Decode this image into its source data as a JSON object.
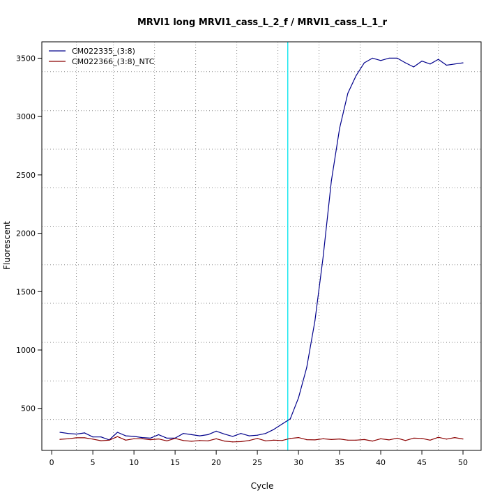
{
  "chart_data": {
    "type": "line",
    "title": "MRVI1 long MRVI1_cass_L_2_f / MRVI1_cass_L_1_r",
    "xlabel": "Cycle",
    "ylabel": "Fluorescent",
    "xlim": [
      -1.2,
      52.2
    ],
    "ylim": [
      140,
      3640
    ],
    "x_ticks": [
      0,
      5,
      10,
      15,
      20,
      25,
      30,
      35,
      40,
      45,
      50
    ],
    "y_ticks": [
      500,
      1000,
      1500,
      2000,
      2500,
      3000,
      3500
    ],
    "x_grid": [
      3,
      7.5,
      12.5,
      17.5,
      22.5,
      27.5,
      32.5,
      37.5,
      42,
      47
    ],
    "y_grid": [
      405,
      735,
      1065,
      1400,
      1730,
      2060,
      2390,
      2720,
      3050,
      3385
    ],
    "grid": true,
    "legend_position": "top-left",
    "threshold_x": 28.7,
    "threshold_color": "#00e5ee",
    "series": [
      {
        "name": "CM022335_(3:8)",
        "color": "#00008b",
        "x": [
          1,
          2,
          3,
          4,
          5,
          6,
          7,
          8,
          9,
          10,
          11,
          12,
          13,
          14,
          15,
          16,
          17,
          18,
          19,
          20,
          21,
          22,
          23,
          24,
          25,
          26,
          27,
          28,
          29,
          30,
          31,
          32,
          33,
          34,
          35,
          36,
          37,
          38,
          39,
          40,
          41,
          42,
          43,
          44,
          45,
          46,
          47,
          48,
          49,
          50
        ],
        "y": [
          295,
          285,
          280,
          290,
          255,
          255,
          230,
          295,
          265,
          260,
          250,
          245,
          275,
          245,
          245,
          285,
          275,
          265,
          275,
          305,
          280,
          260,
          285,
          265,
          270,
          285,
          320,
          365,
          410,
          590,
          850,
          1250,
          1800,
          2450,
          2900,
          3200,
          3350,
          3460,
          3500,
          3480,
          3500,
          3500,
          3460,
          3425,
          3475,
          3450,
          3490,
          3440,
          3450,
          3460
        ]
      },
      {
        "name": "CM022366_(3:8)_NTC",
        "color": "#8b0000",
        "x": [
          1,
          2,
          3,
          4,
          5,
          6,
          7,
          8,
          9,
          10,
          11,
          12,
          13,
          14,
          15,
          16,
          17,
          18,
          19,
          20,
          21,
          22,
          23,
          24,
          25,
          26,
          27,
          28,
          29,
          30,
          31,
          32,
          33,
          34,
          35,
          36,
          37,
          38,
          39,
          40,
          41,
          42,
          43,
          44,
          45,
          46,
          47,
          48,
          49,
          50
        ],
        "y": [
          235,
          240,
          248,
          248,
          237,
          223,
          228,
          258,
          228,
          240,
          240,
          232,
          238,
          222,
          243,
          225,
          218,
          225,
          222,
          240,
          220,
          213,
          215,
          225,
          243,
          222,
          228,
          225,
          243,
          250,
          232,
          230,
          240,
          233,
          238,
          228,
          228,
          233,
          220,
          240,
          230,
          245,
          225,
          245,
          243,
          228,
          252,
          237,
          250,
          238
        ]
      }
    ]
  }
}
